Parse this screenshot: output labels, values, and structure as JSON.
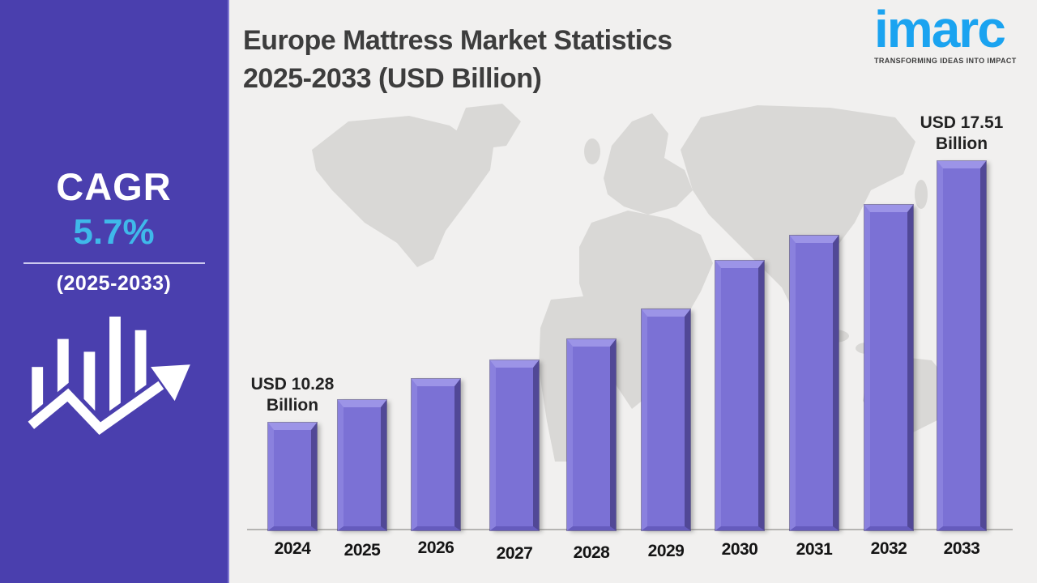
{
  "sidebar": {
    "background_color": "#4a3fae",
    "cagr_label": "CAGR",
    "cagr_value": "5.7%",
    "cagr_value_color": "#3fb9ea",
    "period": "(2025-2033)"
  },
  "header": {
    "title_line1": "Europe Mattress Market Statistics",
    "title_line2": "2025-2033 (USD Billion)"
  },
  "logo": {
    "brand": "imarc",
    "tagline": "TRANSFORMING IDEAS INTO IMPACT",
    "brand_color": "#1aa3f0"
  },
  "chart_data": {
    "type": "bar",
    "title": "Europe Mattress Market Statistics 2025-2033 (USD Billion)",
    "unit": "USD Billion",
    "categories": [
      "2024",
      "2025",
      "2026",
      "2027",
      "2028",
      "2029",
      "2030",
      "2031",
      "2032",
      "2033"
    ],
    "values": [
      10.28,
      10.91,
      11.49,
      12.0,
      12.59,
      13.41,
      14.76,
      15.45,
      16.3,
      17.51
    ],
    "labeled_points": [
      {
        "category": "2024",
        "label_lines": [
          "USD 10.28",
          "Billion"
        ]
      },
      {
        "category": "2033",
        "label_lines": [
          "USD 17.51",
          "Billion"
        ]
      }
    ],
    "bar_color": "#7b71d5",
    "bar_bevel_light": "#9c94e7",
    "bar_bevel_dark": "#514896",
    "xlabel": "",
    "ylabel": "",
    "axis": {
      "gridlines": false,
      "y_axis_visible": false,
      "baseline_visible": true
    },
    "legend": false,
    "background_map": "world-map-silhouette"
  }
}
